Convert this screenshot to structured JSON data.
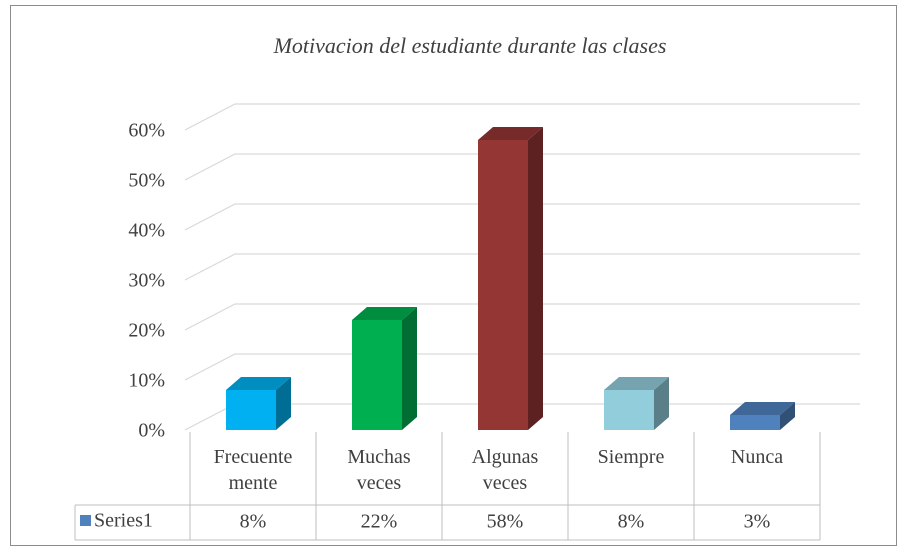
{
  "chart_data": {
    "type": "bar3d",
    "title": "Motivacion del estudiante durante las clases",
    "categories": [
      "Frecuente mente",
      "Muchas veces",
      "Algunas veces",
      "Siempre",
      "Nunca"
    ],
    "series": [
      {
        "name": "Series1",
        "color": "#4f81bd",
        "point_colors": [
          "#00b0f0",
          "#00b050",
          "#943634",
          "#92cddc",
          "#4f81bd"
        ],
        "values": [
          8,
          22,
          58,
          8,
          3
        ],
        "value_labels": [
          "8%",
          "22%",
          "58%",
          "8%",
          "3%"
        ]
      }
    ],
    "ylim": [
      0,
      60
    ],
    "yticks": [
      {
        "value": 0,
        "label": "0%"
      },
      {
        "value": 10,
        "label": "10%"
      },
      {
        "value": 20,
        "label": "20%"
      },
      {
        "value": 30,
        "label": "30%"
      },
      {
        "value": 40,
        "label": "40%"
      },
      {
        "value": 50,
        "label": "50%"
      },
      {
        "value": 60,
        "label": "60%"
      }
    ],
    "grid": true,
    "data_table": true
  }
}
